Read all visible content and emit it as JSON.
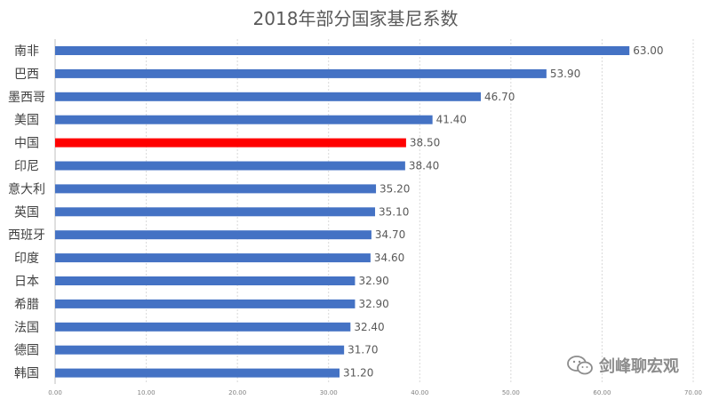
{
  "chart_data": {
    "type": "bar",
    "orientation": "horizontal",
    "title": "2018年部分国家基尼系数",
    "categories": [
      "南非",
      "巴西",
      "墨西哥",
      "美国",
      "中国",
      "印尼",
      "意大利",
      "英国",
      "西班牙",
      "印度",
      "日本",
      "希腊",
      "法国",
      "德国",
      "韩国"
    ],
    "values": [
      63.0,
      53.9,
      46.7,
      41.4,
      38.5,
      38.4,
      35.2,
      35.1,
      34.7,
      34.6,
      32.9,
      32.9,
      32.4,
      31.7,
      31.2
    ],
    "value_labels": [
      "63.00",
      "53.90",
      "46.70",
      "41.40",
      "38.50",
      "38.40",
      "35.20",
      "35.10",
      "34.70",
      "34.60",
      "32.90",
      "32.90",
      "32.40",
      "31.70",
      "31.20"
    ],
    "xlim": [
      0,
      70
    ],
    "xticks": [
      "0.00",
      "10.00",
      "20.00",
      "30.00",
      "40.00",
      "50.00",
      "60.00",
      "70.00"
    ],
    "highlight_category": "中国",
    "colors": {
      "bar": "#4472c4",
      "highlight": "#ff0000"
    },
    "grid": true,
    "xlabel": "",
    "ylabel": ""
  },
  "watermark": {
    "text": "剑峰聊宏观",
    "icon": "wechat-icon"
  }
}
